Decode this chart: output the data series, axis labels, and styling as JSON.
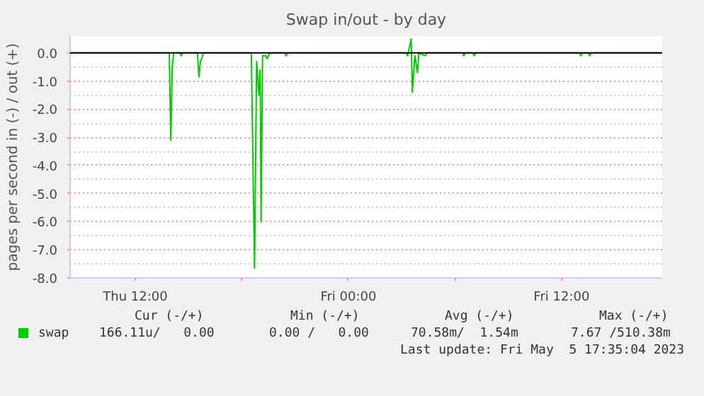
{
  "chart_data": {
    "type": "line",
    "title": "Swap in/out - by day",
    "ylabel": "pages per second in (-) / out (+)",
    "x": [
      "2023-05-04T08:20",
      "2023-05-04T13:55",
      "2023-05-04T14:00",
      "2023-05-04T14:05",
      "2023-05-04T14:10",
      "2023-05-04T14:30",
      "2023-05-04T14:35",
      "2023-05-04T14:40",
      "2023-05-04T15:30",
      "2023-05-04T15:35",
      "2023-05-04T15:40",
      "2023-05-04T15:45",
      "2023-05-04T15:50",
      "2023-05-04T18:32",
      "2023-05-04T18:43",
      "2023-05-04T18:50",
      "2023-05-04T18:58",
      "2023-05-04T19:02",
      "2023-05-04T19:05",
      "2023-05-04T19:10",
      "2023-05-04T19:20",
      "2023-05-04T19:25",
      "2023-05-04T19:30",
      "2023-05-04T19:35",
      "2023-05-04T20:25",
      "2023-05-04T20:30",
      "2023-05-04T20:35",
      "2023-05-05T03:15",
      "2023-05-05T03:20",
      "2023-05-05T03:32",
      "2023-05-05T03:36",
      "2023-05-05T03:43",
      "2023-05-05T03:45",
      "2023-05-05T03:53",
      "2023-05-05T03:58",
      "2023-05-05T04:20",
      "2023-05-05T04:25",
      "2023-05-05T06:25",
      "2023-05-05T06:30",
      "2023-05-05T06:35",
      "2023-05-05T07:00",
      "2023-05-05T07:05",
      "2023-05-05T07:10",
      "2023-05-05T13:00",
      "2023-05-05T13:05",
      "2023-05-05T13:10",
      "2023-05-05T13:30",
      "2023-05-05T13:35",
      "2023-05-05T13:40",
      "2023-05-05T17:35"
    ],
    "series": [
      {
        "name": "swap",
        "color": "#00cc00",
        "values": [
          0,
          0,
          -3.1,
          -0.5,
          0,
          0,
          -0.1,
          0,
          0,
          -0.85,
          -0.3,
          -0.2,
          0,
          0,
          -7.65,
          -0.3,
          -1.5,
          -0.6,
          -6.0,
          -0.1,
          -0.1,
          -0.2,
          -0.1,
          0,
          0,
          -0.1,
          0,
          0,
          -0.1,
          0.5,
          -1.4,
          -0.3,
          -0.1,
          -0.7,
          0,
          -0.1,
          0,
          0,
          -0.1,
          0,
          0,
          -0.1,
          0,
          0,
          -0.1,
          0,
          0,
          -0.1,
          0,
          0
        ]
      }
    ],
    "xlim": [
      "2023-05-04T08:20",
      "2023-05-05T17:40"
    ],
    "xticks": [
      {
        "value": "2023-05-04T12:00",
        "label": "Thu 12:00"
      },
      {
        "value": "2023-05-04T18:00",
        "label": null
      },
      {
        "value": "2023-05-05T00:00",
        "label": "Fri 00:00"
      },
      {
        "value": "2023-05-05T06:00",
        "label": null
      },
      {
        "value": "2023-05-05T12:00",
        "label": "Fri 12:00"
      }
    ],
    "ylim": [
      -8.0,
      0.6
    ],
    "yticks": [
      {
        "value": 0,
        "label": "0.0"
      },
      {
        "value": -1,
        "label": "-1.0"
      },
      {
        "value": -2,
        "label": "-2.0"
      },
      {
        "value": -3,
        "label": "-3.0"
      },
      {
        "value": -4,
        "label": "-4.0"
      },
      {
        "value": -5,
        "label": "-5.0"
      },
      {
        "value": -6,
        "label": "-6.0"
      },
      {
        "value": -7,
        "label": "-7.0"
      },
      {
        "value": -8,
        "label": "-8.0"
      }
    ],
    "ref_lines": [
      {
        "axis": "y",
        "value": 0,
        "color": "#000000"
      }
    ],
    "grid": true,
    "legend": "bottom left",
    "marker": "none",
    "line_style": "solid",
    "annotations": [
      "Cur (-/+)",
      "Min (-/+)",
      "Avg (-/+)",
      "Max (-/+)",
      "166.11u/   0.00",
      "0.00 /   0.00",
      "70.58m/  1.54m",
      "7.67 /510.38m",
      "Last update: Fri May  5 17:35:04 2023"
    ]
  }
}
